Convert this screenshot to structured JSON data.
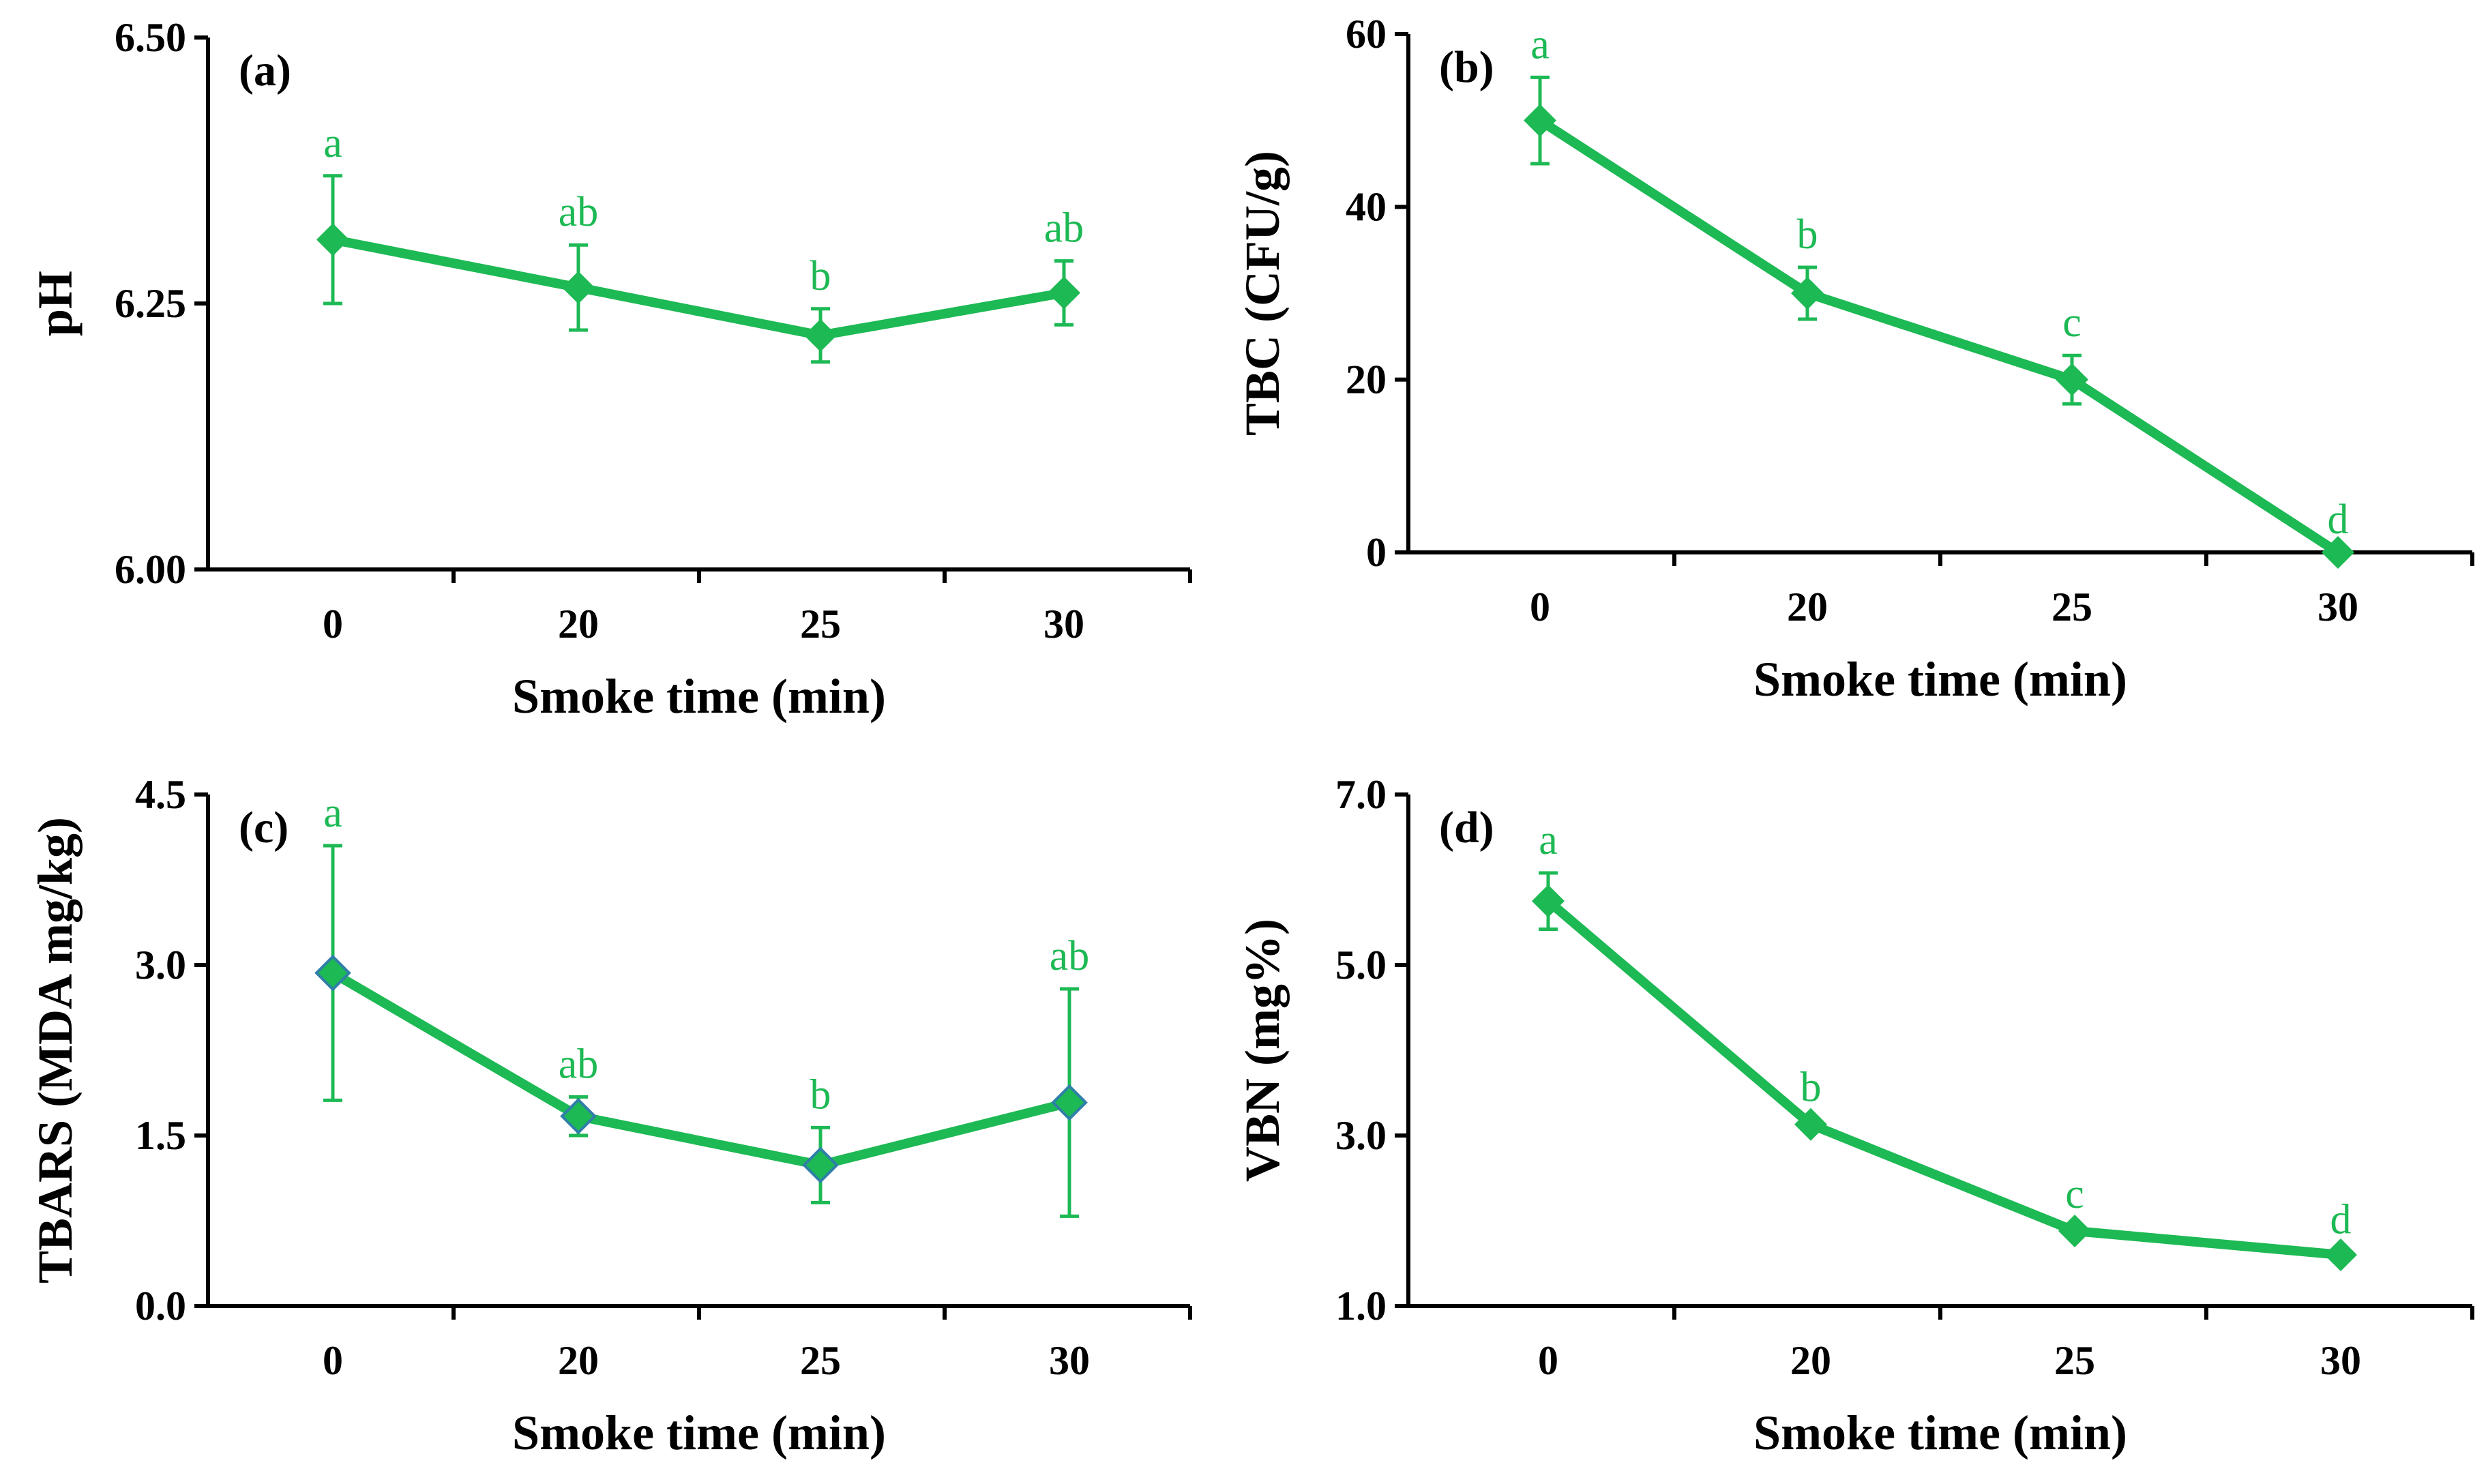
{
  "colors": {
    "series": "#1db954",
    "marker_outline_c": "#2f7fa8",
    "axis": "#000000"
  },
  "chart_data": [
    {
      "id": "a",
      "type": "line",
      "panel_label": "(a)",
      "categories": [
        "0",
        "20",
        "25",
        "30"
      ],
      "values": [
        6.31,
        6.265,
        6.22,
        6.26
      ],
      "errors": [
        0.06,
        0.04,
        0.025,
        0.03
      ],
      "sig_letters": [
        "a",
        "ab",
        "b",
        "ab"
      ],
      "xlabel": "Smoke time (min)",
      "ylabel": "pH",
      "ylim": [
        6.0,
        6.5
      ],
      "yticks": [
        6.0,
        6.25,
        6.5
      ],
      "ytick_labels": [
        "6.00",
        "6.25",
        "6.50"
      ],
      "marker_outline": false
    },
    {
      "id": "b",
      "type": "line",
      "panel_label": "(b)",
      "categories": [
        "0",
        "20",
        "25",
        "30"
      ],
      "values": [
        50,
        30,
        20,
        0
      ],
      "errors": [
        5,
        3,
        2.8,
        0
      ],
      "sig_letters": [
        "a",
        "b",
        "c",
        "d"
      ],
      "xlabel": "Smoke time (min)",
      "ylabel": "TBC (CFU/g)",
      "ylim": [
        0,
        60
      ],
      "yticks": [
        0,
        20,
        40,
        60
      ],
      "ytick_labels": [
        "0",
        "20",
        "40",
        "60"
      ],
      "marker_outline": false
    },
    {
      "id": "c",
      "type": "line",
      "panel_label": "(c)",
      "categories": [
        "0",
        "20",
        "25",
        "30"
      ],
      "values": [
        2.93,
        1.67,
        1.24,
        1.79
      ],
      "errors": [
        1.12,
        0.17,
        0.33,
        1.0
      ],
      "sig_letters": [
        "a",
        "ab",
        "b",
        "ab"
      ],
      "xlabel": "Smoke time (min)",
      "ylabel": "TBARS (MDA mg/kg)",
      "ylim": [
        0.0,
        4.5
      ],
      "yticks": [
        0.0,
        1.5,
        3.0,
        4.5
      ],
      "ytick_labels": [
        "0.0",
        "1.5",
        "3.0",
        "4.5"
      ],
      "marker_outline": true
    },
    {
      "id": "d",
      "type": "line",
      "panel_label": "(d)",
      "categories": [
        "0",
        "20",
        "25",
        "30"
      ],
      "values": [
        5.75,
        3.13,
        1.88,
        1.6
      ],
      "errors": [
        0.33,
        0.05,
        0.05,
        0.03
      ],
      "sig_letters": [
        "a",
        "b",
        "c",
        "d"
      ],
      "xlabel": "Smoke time (min)",
      "ylabel": "VBN (mg%)",
      "ylim": [
        1.0,
        7.0
      ],
      "yticks": [
        1.0,
        3.0,
        5.0,
        7.0
      ],
      "ytick_labels": [
        "1.0",
        "3.0",
        "5.0",
        "7.0"
      ],
      "marker_outline": false
    }
  ]
}
